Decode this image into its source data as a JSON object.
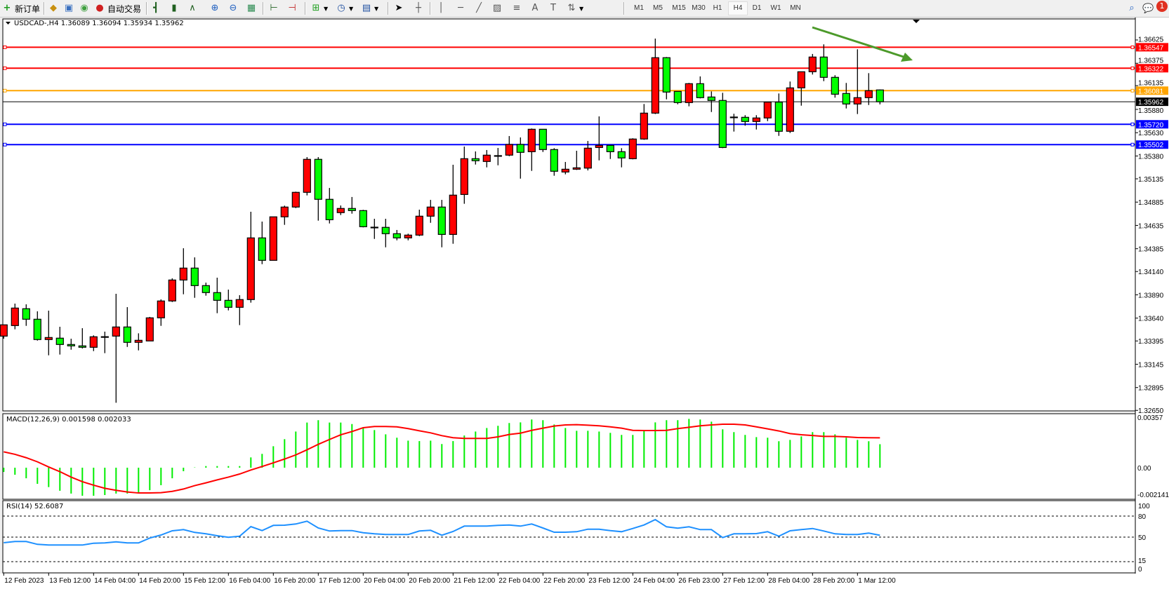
{
  "toolbar": {
    "new_order": "新订单",
    "auto_trading": "自动交易",
    "timeframes": [
      "M1",
      "M5",
      "M15",
      "M30",
      "H1",
      "H4",
      "D1",
      "W1",
      "MN"
    ],
    "active_timeframe": "H4",
    "notification_count": "1",
    "icons": [
      "new-order-icon",
      "market-watch-icon",
      "navigator-icon",
      "signals-icon",
      "auto-trading-icon",
      "bar-chart-icon",
      "candlestick-icon",
      "line-chart-icon",
      "zoom-in-icon",
      "zoom-out-icon",
      "tile-windows-icon",
      "chart-shift-icon",
      "auto-scroll-icon",
      "new-chart-icon",
      "periods-icon",
      "templates-icon",
      "cursor-icon",
      "crosshair-icon",
      "vertical-line-icon",
      "horizontal-line-icon",
      "trendline-icon",
      "equidistant-channel-icon",
      "fibonacci-icon",
      "text-icon",
      "text-label-icon",
      "arrows-icon",
      "search-icon",
      "notifications-icon"
    ]
  },
  "chart": {
    "symbol_info": "USDCAD-,H4  1.36089 1.36094 1.35934 1.35962",
    "colors": {
      "bull": "#ff0000",
      "bear": "#00ff00",
      "grid_bg": "#ffffff",
      "macd_hist": "#00ee00",
      "macd_signal": "#ff0000",
      "rsi": "#1e90ff",
      "trend_arrow": "#4c9a2a"
    },
    "price_axis_labels": [
      "1.36625",
      "1.36375",
      "1.36135",
      "1.35880",
      "1.35630",
      "1.35380",
      "1.35135",
      "1.34885",
      "1.34635",
      "1.34385",
      "1.34140",
      "1.33890",
      "1.33640",
      "1.33395",
      "1.33145",
      "1.32895",
      "1.32650"
    ],
    "current_price": "1.35962",
    "horizontal_lines": [
      {
        "price": "1.36547",
        "color": "#ff0000"
      },
      {
        "price": "1.36322",
        "color": "#ff0000"
      },
      {
        "price": "1.36081",
        "color": "#ffa500"
      },
      {
        "price": "1.35720",
        "color": "#0000ff"
      },
      {
        "price": "1.35502",
        "color": "#0000ff"
      }
    ],
    "candles_ohlc": [
      [
        1.33447,
        1.3357,
        1.33419,
        1.33568
      ],
      [
        1.3356,
        1.33796,
        1.3352,
        1.33748
      ],
      [
        1.33741,
        1.33788,
        1.33557,
        1.33628
      ],
      [
        1.33628,
        1.33713,
        1.33399,
        1.3341
      ],
      [
        1.3341,
        1.3372,
        1.33241,
        1.33432
      ],
      [
        1.33425,
        1.33547,
        1.33249,
        1.33357
      ],
      [
        1.33357,
        1.33419,
        1.33301,
        1.33342
      ],
      [
        1.33342,
        1.33532,
        1.33314,
        1.33327
      ],
      [
        1.33327,
        1.33455,
        1.33286,
        1.3344
      ],
      [
        1.33441,
        1.33495,
        1.33264,
        1.3344
      ],
      [
        1.33447,
        1.33901,
        1.32732,
        1.33545
      ],
      [
        1.33545,
        1.33758,
        1.33331,
        1.3338
      ],
      [
        1.3338,
        1.33477,
        1.33294,
        1.33402
      ],
      [
        1.33395,
        1.33653,
        1.33395,
        1.33643
      ],
      [
        1.33643,
        1.33841,
        1.33557,
        1.33824
      ],
      [
        1.33824,
        1.34067,
        1.33813,
        1.34049
      ],
      [
        1.34049,
        1.3439,
        1.33896,
        1.34177
      ],
      [
        1.34177,
        1.34292,
        1.33858,
        1.33989
      ],
      [
        1.33989,
        1.34021,
        1.33881,
        1.33914
      ],
      [
        1.33914,
        1.34074,
        1.33693,
        1.33831
      ],
      [
        1.33831,
        1.33946,
        1.33723,
        1.33756
      ],
      [
        1.33756,
        1.33886,
        1.33565,
        1.33839
      ],
      [
        1.33839,
        1.34781,
        1.33806,
        1.34501
      ],
      [
        1.34501,
        1.34676,
        1.34219,
        1.3426
      ],
      [
        1.3426,
        1.34727,
        1.3426,
        1.34727
      ],
      [
        1.34727,
        1.34847,
        1.34641,
        1.34832
      ],
      [
        1.34832,
        1.34997,
        1.34821,
        1.3499
      ],
      [
        1.3499,
        1.35368,
        1.34957,
        1.35344
      ],
      [
        1.35344,
        1.35368,
        1.34686,
        1.34915
      ],
      [
        1.34915,
        1.35037,
        1.34656,
        1.34696
      ],
      [
        1.34772,
        1.34849,
        1.34746,
        1.34817
      ],
      [
        1.34817,
        1.3494,
        1.34761,
        1.34794
      ],
      [
        1.34794,
        1.34802,
        1.34614,
        1.34621
      ],
      [
        1.34616,
        1.34706,
        1.3449,
        1.34615
      ],
      [
        1.34614,
        1.34706,
        1.344,
        1.34546
      ],
      [
        1.34546,
        1.34586,
        1.34475,
        1.34501
      ],
      [
        1.34501,
        1.34546,
        1.34475,
        1.34531
      ],
      [
        1.34531,
        1.34804,
        1.3452,
        1.34734
      ],
      [
        1.34734,
        1.34909,
        1.34663,
        1.34832
      ],
      [
        1.34832,
        1.34909,
        1.344,
        1.34538
      ],
      [
        1.34538,
        1.35286,
        1.34438,
        1.3496
      ],
      [
        1.34967,
        1.35481,
        1.34867,
        1.35351
      ],
      [
        1.35351,
        1.35429,
        1.35288,
        1.35329
      ],
      [
        1.35321,
        1.35444,
        1.35258,
        1.35389
      ],
      [
        1.35384,
        1.35466,
        1.3528,
        1.35383
      ],
      [
        1.35389,
        1.35594,
        1.35378,
        1.35504
      ],
      [
        1.35504,
        1.35579,
        1.35137,
        1.35419
      ],
      [
        1.35426,
        1.35675,
        1.3522,
        1.35667
      ],
      [
        1.35667,
        1.35667,
        1.35423,
        1.35449
      ],
      [
        1.35449,
        1.35464,
        1.35168,
        1.35216
      ],
      [
        1.35208,
        1.35316,
        1.35183,
        1.35238
      ],
      [
        1.35238,
        1.35436,
        1.3523,
        1.35253
      ],
      [
        1.3525,
        1.35541,
        1.35225,
        1.35464
      ],
      [
        1.35471,
        1.35805,
        1.35333,
        1.35494
      ],
      [
        1.35494,
        1.35494,
        1.35348,
        1.35426
      ],
      [
        1.35426,
        1.35464,
        1.35258,
        1.35359
      ],
      [
        1.35351,
        1.3557,
        1.35344,
        1.35562
      ],
      [
        1.35562,
        1.35938,
        1.35554,
        1.3584
      ],
      [
        1.3584,
        1.3664,
        1.3583,
        1.36435
      ],
      [
        1.36435,
        1.36442,
        1.35988,
        1.36066
      ],
      [
        1.36073,
        1.36073,
        1.35935,
        1.35953
      ],
      [
        1.35953,
        1.36164,
        1.35913,
        1.36156
      ],
      [
        1.36156,
        1.36234,
        1.35998,
        1.36006
      ],
      [
        1.36013,
        1.36073,
        1.35852,
        1.35976
      ],
      [
        1.35976,
        1.36058,
        1.35464,
        1.35471
      ],
      [
        1.35798,
        1.35833,
        1.35642,
        1.35797
      ],
      [
        1.35795,
        1.35818,
        1.35705,
        1.3575
      ],
      [
        1.3575,
        1.35818,
        1.35664,
        1.35788
      ],
      [
        1.35788,
        1.35958,
        1.35754,
        1.35958
      ],
      [
        1.35958,
        1.36051,
        1.35596,
        1.35645
      ],
      [
        1.35645,
        1.36179,
        1.35627,
        1.36111
      ],
      [
        1.36111,
        1.36284,
        1.3592,
        1.36284
      ],
      [
        1.36284,
        1.36475,
        1.36254,
        1.36442
      ],
      [
        1.36442,
        1.36578,
        1.36183,
        1.36224
      ],
      [
        1.36224,
        1.36247,
        1.36006,
        1.36043
      ],
      [
        1.36051,
        1.36164,
        1.3589,
        1.35938
      ],
      [
        1.35938,
        1.36525,
        1.3583,
        1.36006
      ],
      [
        1.36006,
        1.36269,
        1.35927,
        1.36081
      ],
      [
        1.36089,
        1.36094,
        1.35934,
        1.35962
      ]
    ],
    "time_labels": [
      "12 Feb 2023",
      "13 Feb 12:00",
      "14 Feb 04:00",
      "14 Feb 20:00",
      "15 Feb 12:00",
      "16 Feb 04:00",
      "16 Feb 20:00",
      "17 Feb 12:00",
      "20 Feb 04:00",
      "20 Feb 20:00",
      "21 Feb 12:00",
      "22 Feb 04:00",
      "22 Feb 20:00",
      "23 Feb 12:00",
      "24 Feb 04:00",
      "26 Feb 23:00",
      "27 Feb 12:00",
      "28 Feb 04:00",
      "28 Feb 20:00",
      "1 Mar 12:00"
    ]
  },
  "macd": {
    "label": "MACD(12,26,9) 0.001598 0.002033",
    "axis_labels": [
      "0.00357",
      "0.00",
      "-0.002141"
    ],
    "histogram": [
      -0.00029,
      -0.00048,
      -0.00072,
      -0.0011,
      -0.00132,
      -0.00157,
      -0.00176,
      -0.00191,
      -0.00191,
      -0.00186,
      -0.00176,
      -0.00176,
      -0.0017,
      -0.00153,
      -0.00119,
      -0.00072,
      -0.00024,
      2e-05,
      0.00011,
      0.00011,
      0.00011,
      0.00011,
      0.0007,
      0.00094,
      0.00146,
      0.00194,
      0.00246,
      0.00307,
      0.00323,
      0.00307,
      0.00307,
      0.00297,
      0.00275,
      0.00256,
      0.00227,
      0.00204,
      0.00184,
      0.00181,
      0.00184,
      0.00161,
      0.00181,
      0.00219,
      0.00246,
      0.0027,
      0.00285,
      0.00304,
      0.00308,
      0.00328,
      0.00323,
      0.00294,
      0.0027,
      0.00251,
      0.00251,
      0.00246,
      0.00237,
      0.00223,
      0.00223,
      0.0025,
      0.00308,
      0.00323,
      0.00323,
      0.00332,
      0.00328,
      0.00313,
      0.00261,
      0.00242,
      0.00223,
      0.00208,
      0.00204,
      0.0018,
      0.00189,
      0.00213,
      0.00242,
      0.00242,
      0.00227,
      0.00204,
      0.00189,
      0.0018,
      0.001598
    ],
    "signal": [
      0.00108,
      0.00091,
      0.00068,
      0.0004,
      5e-05,
      -0.00027,
      -0.00064,
      -0.00095,
      -0.00119,
      -0.0014,
      -0.00154,
      -0.00165,
      -0.00172,
      -0.00172,
      -0.0017,
      -0.00161,
      -0.00145,
      -0.00122,
      -0.00103,
      -0.00083,
      -0.00064,
      -0.00043,
      -0.00016,
      8e-05,
      0.00033,
      0.00059,
      0.00087,
      0.00122,
      0.00159,
      0.00192,
      0.00224,
      0.00246,
      0.00272,
      0.0028,
      0.0028,
      0.00278,
      0.00266,
      0.00251,
      0.00237,
      0.00218,
      0.00204,
      0.00199,
      0.00199,
      0.00199,
      0.0021,
      0.00226,
      0.00235,
      0.00254,
      0.00269,
      0.00283,
      0.00291,
      0.00293,
      0.00289,
      0.00285,
      0.00278,
      0.00269,
      0.00254,
      0.00253,
      0.00253,
      0.00254,
      0.00266,
      0.00275,
      0.00285,
      0.00291,
      0.00296,
      0.00296,
      0.00291,
      0.00278,
      0.00264,
      0.0025,
      0.00232,
      0.00224,
      0.00219,
      0.00213,
      0.00213,
      0.0021,
      0.00205,
      0.00204,
      0.002033
    ]
  },
  "rsi": {
    "label": "RSI(14) 52.6087",
    "axis_labels": [
      "100",
      "80",
      "50",
      "15",
      "0"
    ],
    "levels": [
      80,
      50,
      15
    ],
    "values": [
      42.0,
      43.7,
      43.7,
      39.7,
      38.7,
      38.7,
      38.7,
      38.7,
      41.3,
      41.7,
      43.3,
      41.7,
      41.7,
      48.7,
      53.0,
      59.0,
      60.7,
      56.7,
      54.7,
      52.0,
      49.7,
      51.3,
      65.0,
      59.3,
      66.7,
      67.0,
      68.7,
      72.7,
      63.0,
      58.7,
      59.3,
      59.3,
      56.3,
      54.7,
      53.7,
      53.7,
      53.7,
      58.7,
      59.7,
      52.7,
      58.0,
      65.7,
      65.7,
      65.7,
      66.7,
      67.3,
      65.7,
      68.7,
      63.0,
      57.0,
      57.0,
      57.7,
      61.3,
      61.3,
      59.3,
      57.7,
      62.3,
      67.3,
      75.0,
      64.7,
      62.7,
      64.7,
      60.7,
      60.7,
      49.3,
      54.7,
      54.7,
      55.0,
      57.7,
      51.3,
      59.0,
      60.7,
      62.3,
      58.7,
      54.7,
      53.7,
      53.7,
      55.7,
      52.6087
    ]
  }
}
